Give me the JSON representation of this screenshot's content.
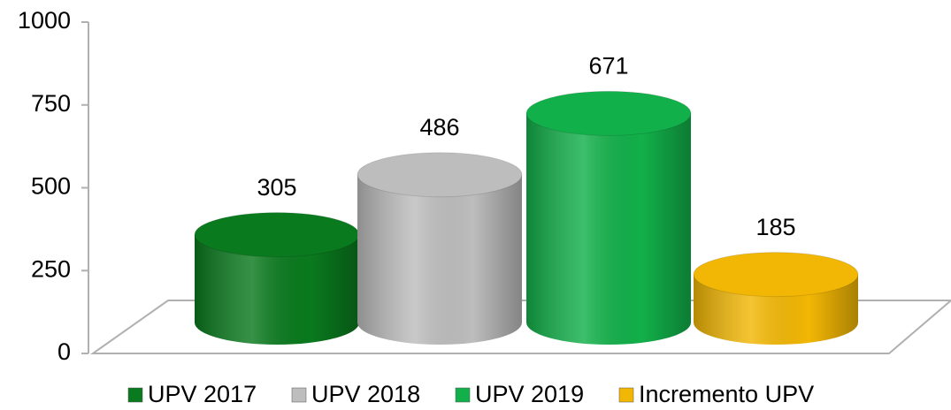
{
  "chart_data": {
    "type": "bar",
    "categories": [
      null
    ],
    "series": [
      {
        "name": "UPV 2017",
        "color": "#0a7a1e",
        "values": [
          305
        ]
      },
      {
        "name": "UPV 2018",
        "color": "#bdbdbd",
        "values": [
          486
        ]
      },
      {
        "name": "UPV 2019",
        "color": "#12b04a",
        "values": [
          671
        ]
      },
      {
        "name": "Incremento UPV",
        "color": "#f2b705",
        "values": [
          185
        ]
      }
    ],
    "ylim": [
      0,
      1000
    ],
    "yticks": [
      0,
      250,
      500,
      750,
      1000
    ]
  }
}
